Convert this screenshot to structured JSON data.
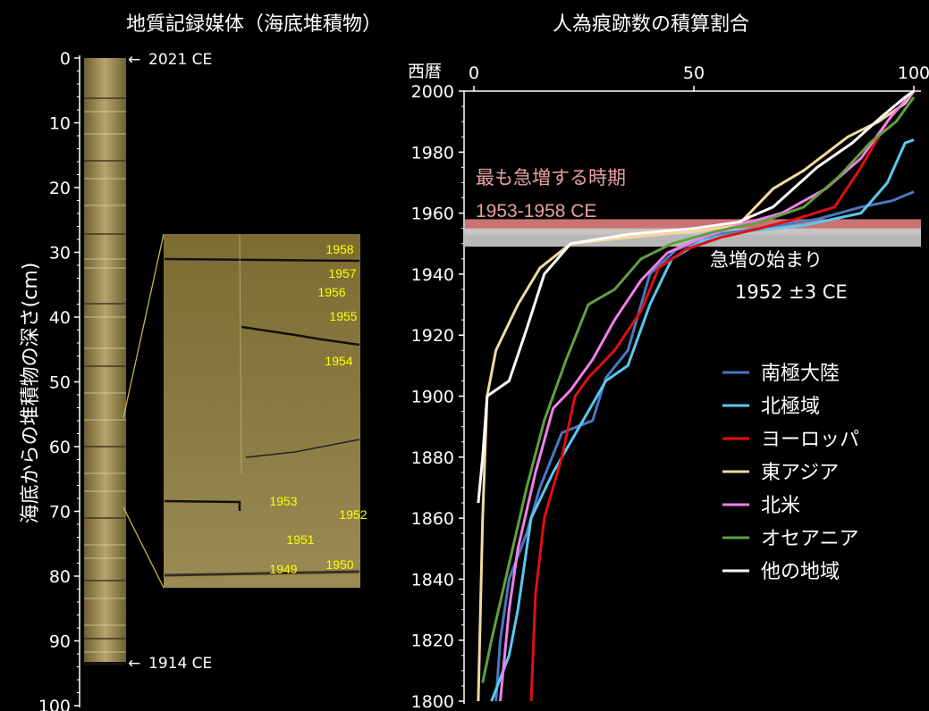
{
  "left_panel": {
    "title": "地質記録媒体（海底堆積物）",
    "ylabel": "海底からの堆積物の深さ(cm)",
    "depth_ticks": [
      0,
      10,
      20,
      30,
      40,
      50,
      60,
      70,
      80,
      90,
      100
    ],
    "top_marker": "2021 CE",
    "bottom_marker": "1914 CE",
    "zoom_labels": [
      "1958",
      "1957",
      "1956",
      "1955",
      "1954",
      "1953",
      "1952",
      "1951",
      "1950",
      "1949"
    ],
    "colors": {
      "core": "#9a8a55",
      "zoom_line": "#d4c24a",
      "zoom_label": "#ffff00"
    }
  },
  "right_panel": {
    "title": "人為痕跡数の積算割合",
    "ycorner": "西暦",
    "annotation_peak": {
      "line1": "最も急増する時期",
      "line2": "1953-1958 CE",
      "color": "#e8a0a0"
    },
    "annotation_start": {
      "line1": "急増の始まり",
      "line2": "1952 ±3 CE"
    },
    "bands": [
      {
        "name": "peak",
        "from": 1953,
        "to": 1958,
        "color": "#e08080"
      },
      {
        "name": "start",
        "from": 1949,
        "to": 1955,
        "color": "#cccccc"
      }
    ]
  },
  "chart_data": {
    "type": "line",
    "title": "人為痕跡数の積算割合",
    "xlim": [
      0,
      100
    ],
    "xticks": [
      0,
      50,
      100
    ],
    "ylim": [
      1800,
      2000
    ],
    "yticks": [
      1800,
      1820,
      1840,
      1860,
      1880,
      1900,
      1920,
      1940,
      1960,
      1980,
      2000
    ],
    "series": [
      {
        "name": "南極大陸",
        "color": "#4a78c0",
        "points": [
          [
            5,
            1800
          ],
          [
            6,
            1820
          ],
          [
            8,
            1840
          ],
          [
            12,
            1855
          ],
          [
            15,
            1870
          ],
          [
            20,
            1888
          ],
          [
            27,
            1892
          ],
          [
            30,
            1906
          ],
          [
            35,
            1915
          ],
          [
            40,
            1940
          ],
          [
            46,
            1948
          ],
          [
            55,
            1953
          ],
          [
            65,
            1955
          ],
          [
            78,
            1958
          ],
          [
            88,
            1962
          ],
          [
            95,
            1964
          ],
          [
            100,
            1967
          ]
        ]
      },
      {
        "name": "北極域",
        "color": "#5bc8f0",
        "points": [
          [
            4,
            1800
          ],
          [
            8,
            1815
          ],
          [
            10,
            1830
          ],
          [
            13,
            1860
          ],
          [
            18,
            1875
          ],
          [
            24,
            1890
          ],
          [
            30,
            1905
          ],
          [
            35,
            1910
          ],
          [
            40,
            1930
          ],
          [
            45,
            1945
          ],
          [
            52,
            1951
          ],
          [
            62,
            1954
          ],
          [
            75,
            1956
          ],
          [
            88,
            1960
          ],
          [
            94,
            1970
          ],
          [
            98,
            1983
          ],
          [
            100,
            1984
          ]
        ]
      },
      {
        "name": "ヨーロッパ",
        "color": "#e01010",
        "points": [
          [
            13,
            1800
          ],
          [
            14,
            1835
          ],
          [
            16,
            1860
          ],
          [
            20,
            1880
          ],
          [
            23,
            1900
          ],
          [
            26,
            1906
          ],
          [
            32,
            1915
          ],
          [
            38,
            1928
          ],
          [
            42,
            1942
          ],
          [
            48,
            1948
          ],
          [
            56,
            1952
          ],
          [
            65,
            1955
          ],
          [
            73,
            1958
          ],
          [
            82,
            1962
          ],
          [
            88,
            1975
          ],
          [
            94,
            1990
          ],
          [
            98,
            1997
          ],
          [
            100,
            2000
          ]
        ]
      },
      {
        "name": "東アジア",
        "color": "#f4d9a0",
        "points": [
          [
            1,
            1800
          ],
          [
            2,
            1860
          ],
          [
            3,
            1900
          ],
          [
            5,
            1915
          ],
          [
            10,
            1930
          ],
          [
            15,
            1942
          ],
          [
            22,
            1950
          ],
          [
            35,
            1952
          ],
          [
            50,
            1954
          ],
          [
            60,
            1956
          ],
          [
            68,
            1968
          ],
          [
            75,
            1974
          ],
          [
            85,
            1985
          ],
          [
            92,
            1990
          ],
          [
            98,
            1996
          ],
          [
            100,
            2000
          ]
        ]
      },
      {
        "name": "北米",
        "color": "#f080e8",
        "points": [
          [
            6,
            1800
          ],
          [
            8,
            1830
          ],
          [
            10,
            1850
          ],
          [
            14,
            1875
          ],
          [
            18,
            1896
          ],
          [
            22,
            1902
          ],
          [
            27,
            1912
          ],
          [
            32,
            1925
          ],
          [
            38,
            1938
          ],
          [
            44,
            1947
          ],
          [
            52,
            1952
          ],
          [
            60,
            1956
          ],
          [
            70,
            1960
          ],
          [
            80,
            1968
          ],
          [
            88,
            1978
          ],
          [
            95,
            1992
          ],
          [
            100,
            2000
          ]
        ]
      },
      {
        "name": "オセアニア",
        "color": "#60a040",
        "points": [
          [
            2,
            1806
          ],
          [
            4,
            1820
          ],
          [
            8,
            1845
          ],
          [
            12,
            1870
          ],
          [
            16,
            1892
          ],
          [
            21,
            1912
          ],
          [
            26,
            1930
          ],
          [
            32,
            1935
          ],
          [
            38,
            1945
          ],
          [
            45,
            1950
          ],
          [
            55,
            1954
          ],
          [
            65,
            1957
          ],
          [
            75,
            1962
          ],
          [
            83,
            1972
          ],
          [
            90,
            1983
          ],
          [
            96,
            1990
          ],
          [
            100,
            1998
          ]
        ]
      },
      {
        "name": "他の地域",
        "color": "#ffffff",
        "points": [
          [
            1,
            1865
          ],
          [
            2,
            1880
          ],
          [
            3,
            1900
          ],
          [
            8,
            1905
          ],
          [
            12,
            1922
          ],
          [
            16,
            1940
          ],
          [
            22,
            1950
          ],
          [
            35,
            1953
          ],
          [
            50,
            1955
          ],
          [
            60,
            1957
          ],
          [
            68,
            1962
          ],
          [
            78,
            1975
          ],
          [
            86,
            1983
          ],
          [
            93,
            1992
          ],
          [
            98,
            1998
          ],
          [
            100,
            2000
          ]
        ]
      }
    ]
  }
}
